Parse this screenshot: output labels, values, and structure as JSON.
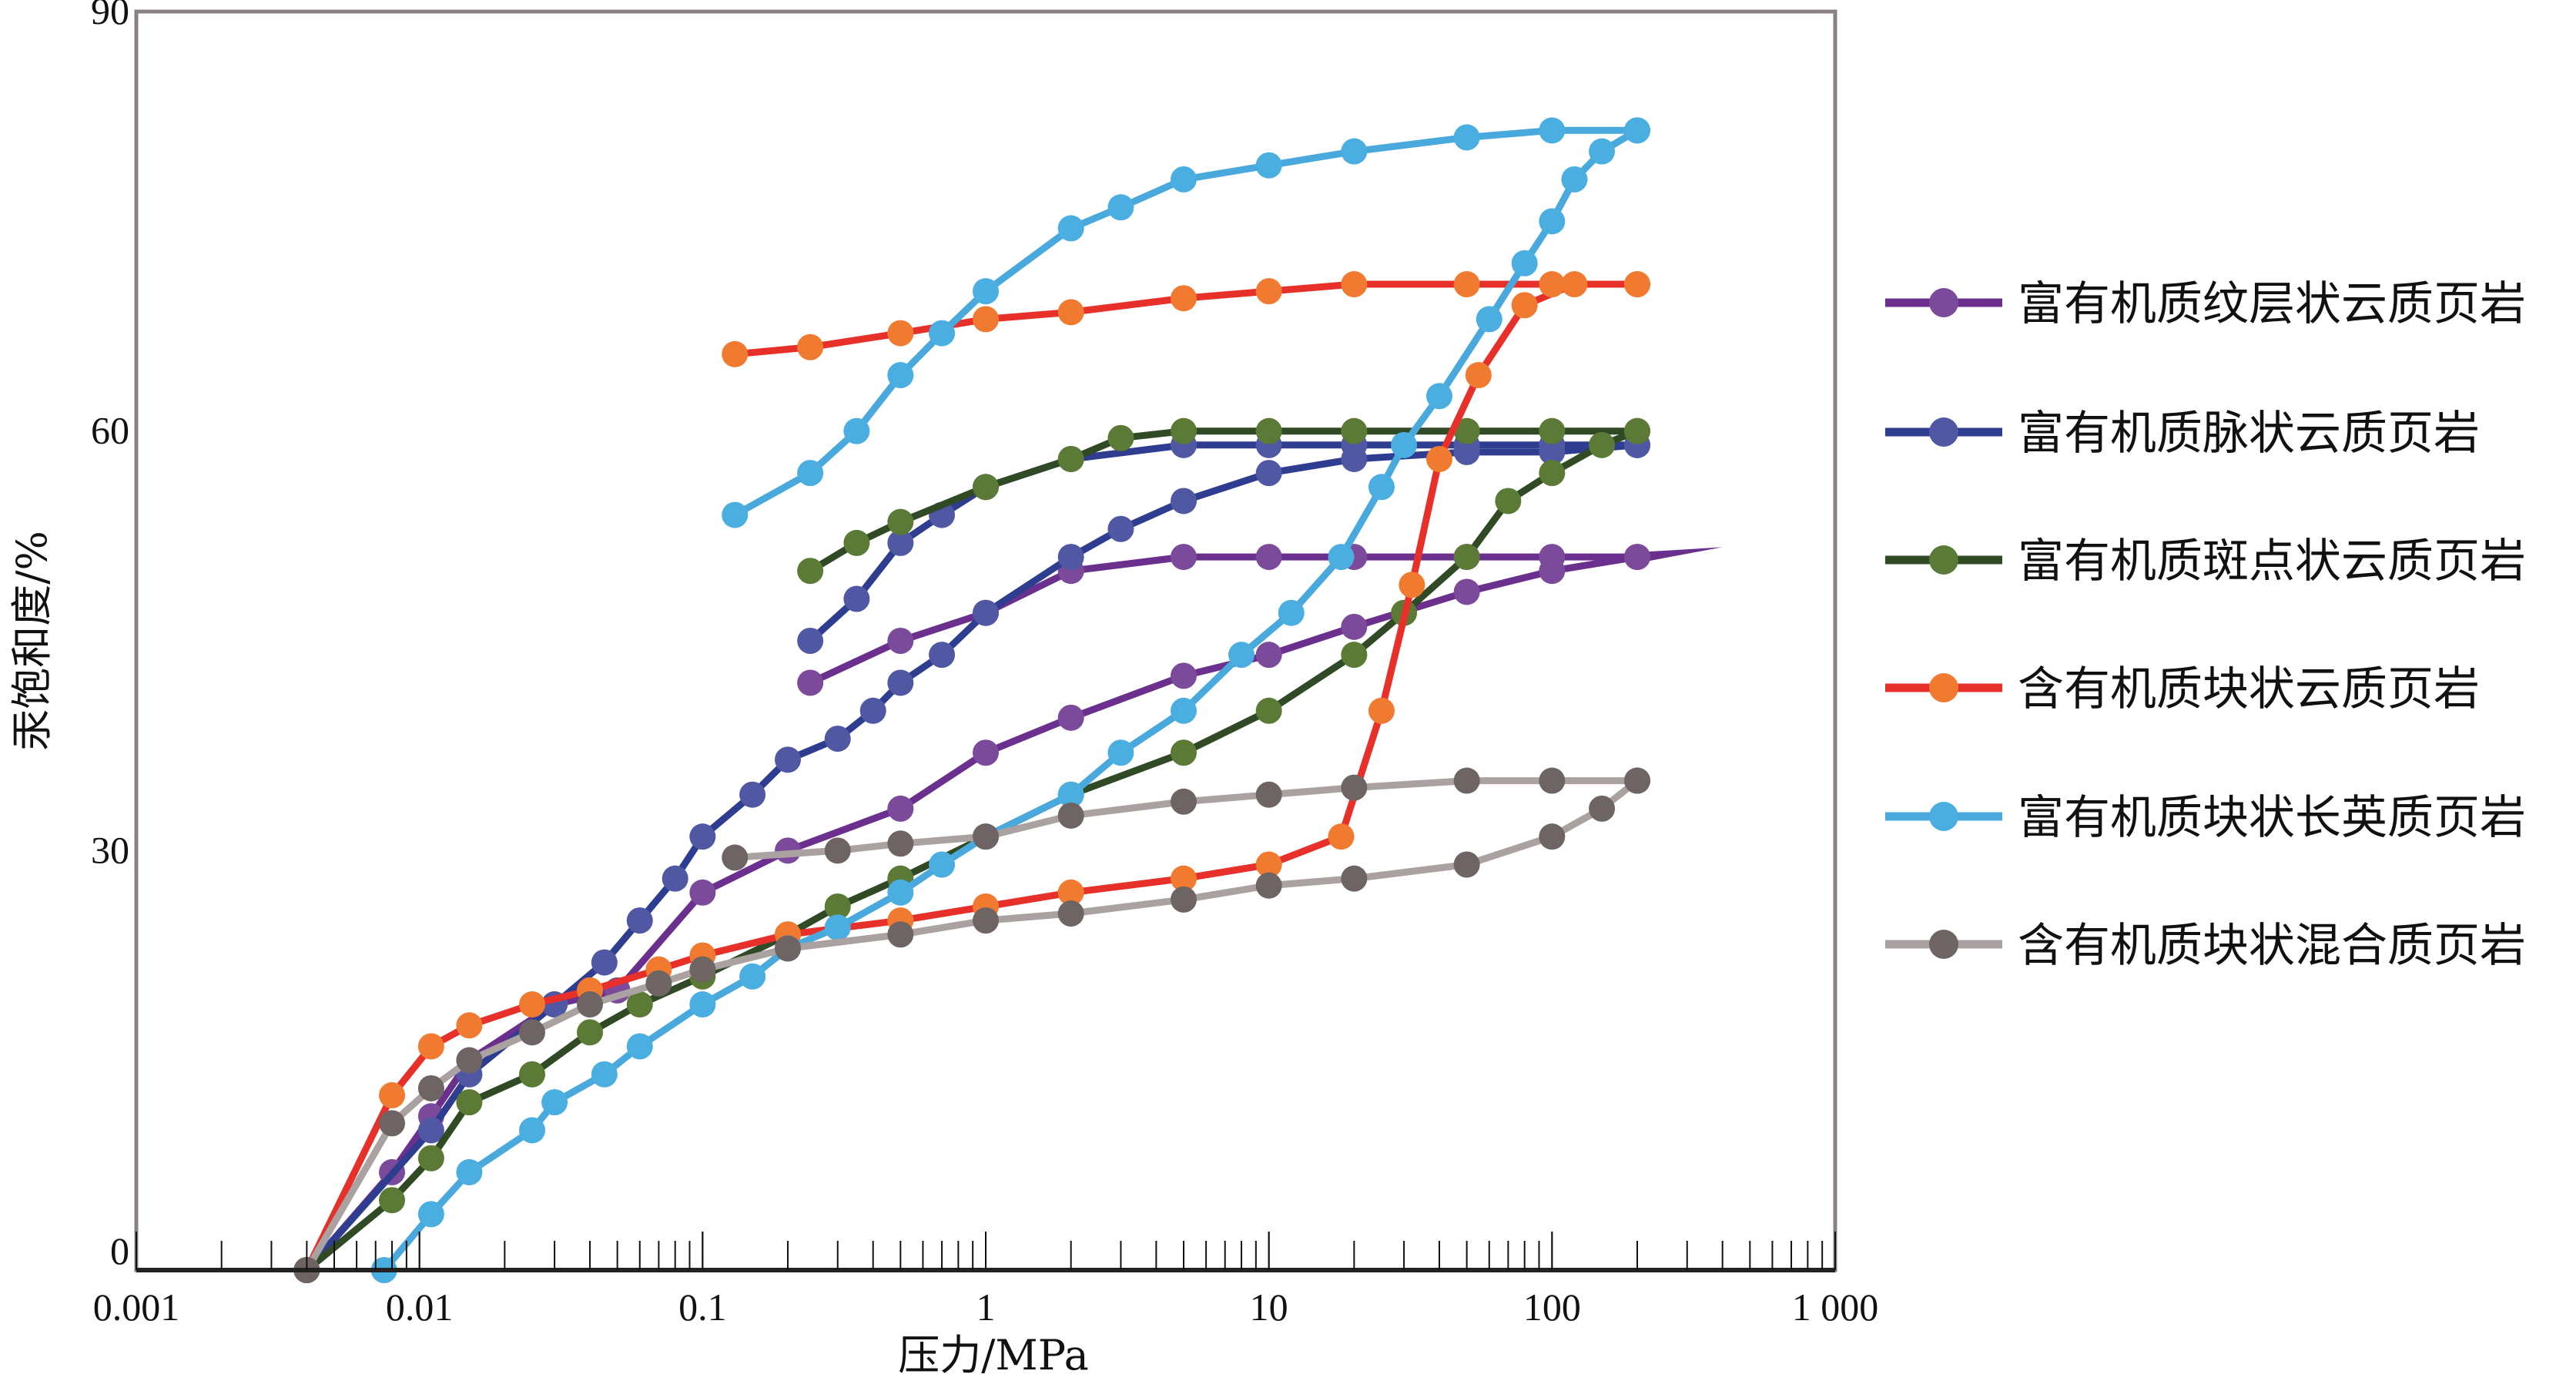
{
  "chart_data": {
    "type": "line",
    "title": "",
    "xlabel": "压力/MPa",
    "ylabel": "汞饱和度/%",
    "x_scale": "log",
    "xlim": [
      0.001,
      1000
    ],
    "ylim": [
      0,
      90
    ],
    "x_ticks": [
      0.001,
      0.01,
      0.1,
      1,
      10,
      100,
      1000
    ],
    "x_tick_labels": [
      "0.001",
      "0.01",
      "0.1",
      "1",
      "10",
      "100",
      "1 000"
    ],
    "y_ticks": [
      0,
      30,
      60,
      90
    ],
    "y_tick_labels": [
      "0",
      "30",
      "60",
      "90"
    ],
    "grid": false,
    "legend_position": "right",
    "series": [
      {
        "name": "富有机质纹层状云质页岩",
        "line_color": "#6b2f8e",
        "marker_color": "#7b4a9a",
        "intrusion": {
          "x": [
            0.004,
            0.008,
            0.011,
            0.015,
            0.03,
            0.05,
            0.1,
            0.2,
            0.5,
            1,
            2,
            5,
            10,
            20,
            50,
            100,
            200
          ],
          "y": [
            0,
            7,
            11,
            15,
            19,
            20,
            27,
            30,
            33,
            37,
            39.5,
            42.5,
            44,
            46,
            48.5,
            50,
            51
          ]
        },
        "extrusion": {
          "x": [
            200,
            100,
            50,
            20,
            10,
            5,
            2,
            1,
            0.5,
            0.24
          ],
          "y": [
            51,
            51,
            51,
            51,
            51,
            51,
            50,
            47,
            45,
            42
          ]
        },
        "tail": {
          "x": [
            200,
            400
          ],
          "y": [
            51,
            51.7
          ]
        }
      },
      {
        "name": "富有机质脉状云质页岩",
        "line_color": "#2e3d8f",
        "marker_color": "#5158a3",
        "intrusion": {
          "x": [
            0.004,
            0.011,
            0.015,
            0.03,
            0.045,
            0.06,
            0.08,
            0.1,
            0.15,
            0.2,
            0.3,
            0.4,
            0.5,
            0.7,
            1,
            2,
            3,
            5,
            10,
            20,
            50,
            100,
            200
          ],
          "y": [
            0,
            10,
            14,
            19,
            22,
            25,
            28,
            31,
            34,
            36.5,
            38,
            40,
            42,
            44,
            47,
            51,
            53,
            55,
            57,
            58,
            58.5,
            58.5,
            59
          ]
        },
        "extrusion": {
          "x": [
            200,
            100,
            50,
            20,
            10,
            5,
            2,
            1,
            0.7,
            0.5,
            0.35,
            0.24
          ],
          "y": [
            59,
            59,
            59,
            59,
            59,
            59,
            58,
            56,
            54,
            52,
            48,
            45
          ]
        }
      },
      {
        "name": "富有机质斑点状云质页岩",
        "line_color": "#2f4a25",
        "marker_color": "#5a7a35",
        "intrusion": {
          "x": [
            0.004,
            0.008,
            0.011,
            0.015,
            0.025,
            0.04,
            0.06,
            0.1,
            0.2,
            0.3,
            0.5,
            1,
            2,
            5,
            10,
            20,
            30,
            50,
            70,
            100,
            150,
            200
          ],
          "y": [
            0,
            5,
            8,
            12,
            14,
            17,
            19,
            21,
            24,
            26,
            28,
            31,
            34,
            37,
            40,
            44,
            47,
            51,
            55,
            57,
            59,
            60
          ]
        },
        "extrusion": {
          "x": [
            200,
            100,
            50,
            20,
            10,
            5,
            3,
            2,
            1,
            0.5,
            0.35,
            0.24
          ],
          "y": [
            60,
            60,
            60,
            60,
            60,
            60,
            59.5,
            58,
            56,
            53.5,
            52,
            50
          ]
        }
      },
      {
        "name": "含有机质块状云质页岩",
        "line_color": "#e8302a",
        "marker_color": "#f07a30",
        "intrusion": {
          "x": [
            0.004,
            0.008,
            0.011,
            0.015,
            0.025,
            0.04,
            0.07,
            0.1,
            0.2,
            0.5,
            1,
            2,
            5,
            10,
            18,
            25,
            32,
            40,
            55,
            80,
            120,
            200
          ],
          "y": [
            0,
            12.5,
            16,
            17.5,
            19,
            20,
            21.5,
            22.5,
            24,
            25,
            26,
            27,
            28,
            29,
            31,
            40,
            49,
            58,
            64,
            69,
            70.5,
            70.5
          ]
        },
        "extrusion": {
          "x": [
            200,
            100,
            50,
            20,
            10,
            5,
            2,
            1,
            0.5,
            0.24,
            0.13
          ],
          "y": [
            70.5,
            70.5,
            70.5,
            70.5,
            70,
            69.5,
            68.5,
            68,
            67,
            66,
            65.5
          ]
        }
      },
      {
        "name": "富有机质块状长英质页岩",
        "line_color": "#4aa9dc",
        "marker_color": "#4aaee0",
        "intrusion": {
          "x": [
            0.0075,
            0.011,
            0.015,
            0.025,
            0.03,
            0.045,
            0.06,
            0.1,
            0.15,
            0.2,
            0.3,
            0.5,
            0.7,
            1,
            2,
            3,
            5,
            8,
            12,
            18,
            25,
            30,
            40,
            60,
            80,
            100,
            120,
            150,
            200
          ],
          "y": [
            0,
            4,
            7,
            10,
            12,
            14,
            16,
            19,
            21,
            23,
            24.5,
            27,
            29,
            31,
            34,
            37,
            40,
            44,
            47,
            51,
            56,
            59,
            62.5,
            68,
            72,
            75,
            78,
            80,
            81.5
          ]
        },
        "extrusion": {
          "x": [
            200,
            100,
            50,
            20,
            10,
            5,
            3,
            2,
            1,
            0.7,
            0.5,
            0.35,
            0.24,
            0.13
          ],
          "y": [
            81.5,
            81.5,
            81,
            80,
            79,
            78,
            76,
            74.5,
            70,
            67,
            64,
            60,
            57,
            54
          ]
        }
      },
      {
        "name": "含有机质块状混合质页岩",
        "line_color": "#a9a2a0",
        "marker_color": "#6e6464",
        "intrusion": {
          "x": [
            0.004,
            0.008,
            0.011,
            0.015,
            0.025,
            0.04,
            0.07,
            0.1,
            0.2,
            0.5,
            1,
            2,
            5,
            10,
            20,
            50,
            100,
            150,
            200
          ],
          "y": [
            0,
            10.5,
            13,
            15,
            17,
            19,
            20.5,
            21.5,
            23,
            24,
            25,
            25.5,
            26.5,
            27.5,
            28,
            29,
            31,
            33,
            35
          ]
        },
        "extrusion": {
          "x": [
            200,
            100,
            50,
            20,
            10,
            5,
            2,
            1,
            0.5,
            0.3,
            0.13
          ],
          "y": [
            35,
            35,
            35,
            34.5,
            34,
            33.5,
            32.5,
            31,
            30.5,
            30,
            29.5
          ]
        }
      }
    ]
  }
}
